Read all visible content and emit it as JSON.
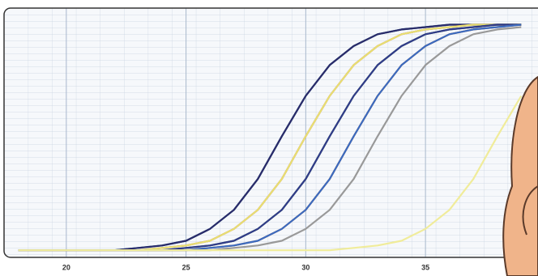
{
  "chart_data": {
    "type": "line",
    "x": [
      18,
      19,
      20,
      21,
      22,
      23,
      24,
      25,
      26,
      27,
      28,
      29,
      30,
      31,
      32,
      33,
      34,
      35,
      36,
      37,
      38,
      39
    ],
    "series": [
      {
        "color": "#1b7a8a",
        "values": [
          3,
          3,
          3,
          3,
          3,
          4,
          5,
          7,
          12,
          20,
          33,
          51,
          68,
          81,
          89,
          94,
          96,
          97,
          98,
          98,
          98,
          98
        ]
      },
      {
        "color": "#2a2a6a",
        "values": [
          3,
          3,
          3,
          3,
          3,
          4,
          5,
          7,
          12,
          20,
          33,
          51,
          68,
          81,
          89,
          94,
          96,
          97,
          98,
          98,
          98,
          98
        ]
      },
      {
        "color": "#b0306a",
        "values": [
          3,
          3,
          3,
          3,
          3,
          3,
          4,
          5,
          7,
          12,
          20,
          33,
          51,
          68,
          81,
          89,
          94,
          96,
          97,
          98,
          98,
          98
        ]
      },
      {
        "color": "#e8e070",
        "values": [
          3,
          3,
          3,
          3,
          3,
          3,
          4,
          5,
          7,
          12,
          20,
          33,
          51,
          68,
          81,
          89,
          94,
          96,
          97,
          98,
          98,
          98
        ]
      },
      {
        "color": "#4a9a3a",
        "values": [
          3,
          3,
          3,
          3,
          3,
          3,
          3,
          4,
          5,
          7,
          12,
          20,
          33,
          51,
          68,
          81,
          89,
          94,
          96,
          97,
          98,
          98
        ]
      },
      {
        "color": "#303a8a",
        "values": [
          3,
          3,
          3,
          3,
          3,
          3,
          3,
          4,
          5,
          7,
          12,
          20,
          33,
          51,
          68,
          81,
          89,
          94,
          96,
          97,
          98,
          98
        ]
      },
      {
        "color": "#e07a20",
        "values": [
          3,
          3,
          3,
          3,
          3,
          3,
          3,
          3,
          4,
          5,
          7,
          12,
          20,
          33,
          51,
          68,
          81,
          89,
          94,
          96,
          97,
          98
        ]
      },
      {
        "color": "#3a6ac0",
        "values": [
          3,
          3,
          3,
          3,
          3,
          3,
          3,
          3,
          4,
          5,
          7,
          12,
          20,
          33,
          51,
          68,
          81,
          89,
          94,
          96,
          97,
          98
        ]
      },
      {
        "color": "#999999",
        "values": [
          3,
          3,
          3,
          3,
          3,
          3,
          3,
          3,
          3,
          4,
          5,
          7,
          12,
          20,
          33,
          51,
          68,
          81,
          89,
          94,
          96,
          97
        ]
      },
      {
        "color": "#f0ec9a",
        "values": [
          3,
          3,
          3,
          3,
          3,
          3,
          3,
          3,
          3,
          3,
          3,
          3,
          3,
          3,
          4,
          5,
          7,
          12,
          20,
          33,
          51,
          68
        ]
      }
    ],
    "xlim": [
      17.4,
      39.7
    ],
    "xticks": [
      20,
      25,
      30,
      35
    ],
    "ylim": [
      0,
      105
    ],
    "grid": true
  }
}
